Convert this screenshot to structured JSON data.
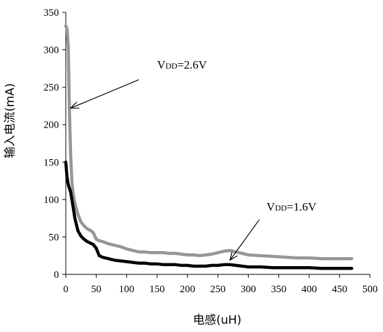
{
  "chart_data": {
    "type": "line",
    "xlabel": "电感(uH)",
    "ylabel": "输入电流(mA)",
    "xlim": [
      0,
      500
    ],
    "ylim": [
      0,
      350
    ],
    "x_ticks": [
      "0",
      "50",
      "100",
      "150",
      "200",
      "250",
      "300",
      "350",
      "400",
      "450",
      "500"
    ],
    "y_ticks": [
      "0",
      "50",
      "100",
      "150",
      "200",
      "250",
      "300",
      "350"
    ],
    "grid": false,
    "series": [
      {
        "color": "#969696",
        "x": [
          0,
          2,
          4,
          6,
          8,
          10,
          12,
          15,
          20,
          25,
          30,
          35,
          40,
          45,
          50,
          55,
          60,
          70,
          80,
          90,
          100,
          110,
          120,
          130,
          140,
          150,
          160,
          170,
          180,
          190,
          200,
          210,
          220,
          230,
          240,
          250,
          260,
          270,
          280,
          290,
          300,
          320,
          340,
          360,
          380,
          400,
          420,
          440,
          460,
          470
        ],
        "y": [
          332,
          328,
          305,
          220,
          160,
          125,
          108,
          95,
          80,
          70,
          65,
          61,
          59,
          56,
          47,
          45,
          44,
          41,
          39,
          37,
          34,
          32,
          30,
          30,
          29,
          29,
          29,
          28,
          28,
          27,
          26,
          26,
          25,
          26,
          27,
          29,
          31,
          32,
          30,
          28,
          26,
          25,
          24,
          23,
          22,
          22,
          21,
          21,
          21,
          21
        ]
      },
      {
        "color": "#000000",
        "x": [
          0,
          2,
          4,
          6,
          8,
          10,
          12,
          15,
          20,
          25,
          30,
          35,
          40,
          45,
          50,
          55,
          60,
          70,
          80,
          90,
          100,
          110,
          120,
          130,
          140,
          150,
          160,
          170,
          180,
          190,
          200,
          210,
          220,
          230,
          240,
          250,
          260,
          270,
          280,
          290,
          300,
          320,
          340,
          360,
          380,
          400,
          420,
          440,
          460,
          470
        ],
        "y": [
          150,
          130,
          120,
          115,
          110,
          100,
          90,
          75,
          58,
          51,
          47,
          44,
          42,
          40,
          35,
          25,
          23,
          21,
          19,
          18,
          17,
          16,
          15,
          15,
          14,
          14,
          13,
          13,
          13,
          12,
          12,
          11,
          11,
          11,
          12,
          12,
          13,
          13,
          12,
          11,
          10,
          10,
          9,
          9,
          9,
          9,
          8,
          8,
          8,
          8
        ]
      }
    ],
    "annotations": [
      {
        "label": "VDD=2.6V",
        "point_to": [
          8,
          222
        ],
        "label_at": [
          150,
          275
        ]
      },
      {
        "label": "VDD=1.6V",
        "point_to": [
          270,
          19
        ],
        "label_at": [
          330,
          85
        ]
      }
    ]
  }
}
